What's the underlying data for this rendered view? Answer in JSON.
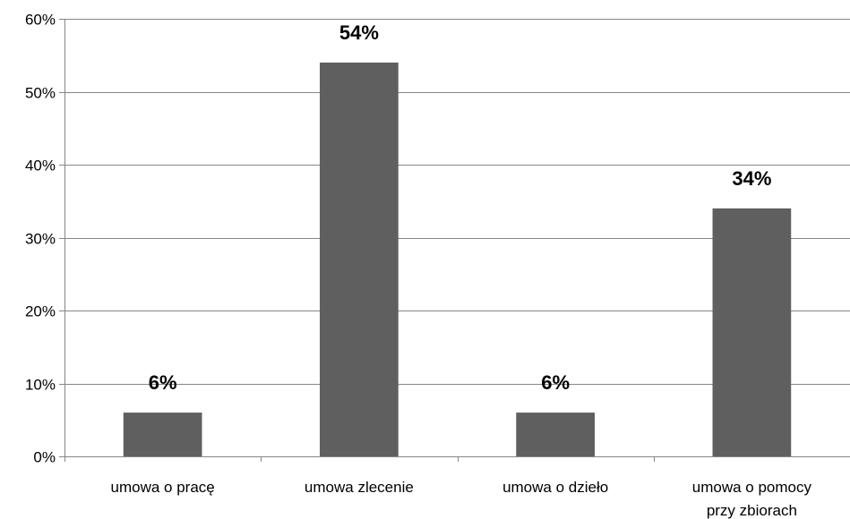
{
  "chart_data": {
    "type": "bar",
    "categories": [
      [
        "umowa o pracę"
      ],
      [
        "umowa zlecenie"
      ],
      [
        "umowa o dzieło"
      ],
      [
        "umowa o pomocy",
        "przy zbiorach"
      ]
    ],
    "values": [
      6,
      54,
      6,
      34
    ],
    "data_labels": [
      "6%",
      "54%",
      "6%",
      "34%"
    ],
    "y_ticks": [
      "0%",
      "10%",
      "20%",
      "30%",
      "40%",
      "50%",
      "60%"
    ],
    "ylim": [
      0,
      60
    ],
    "grid": true,
    "legend": "none",
    "bar_color": "#5f5f5f",
    "title": "",
    "xlabel": "",
    "ylabel": ""
  }
}
